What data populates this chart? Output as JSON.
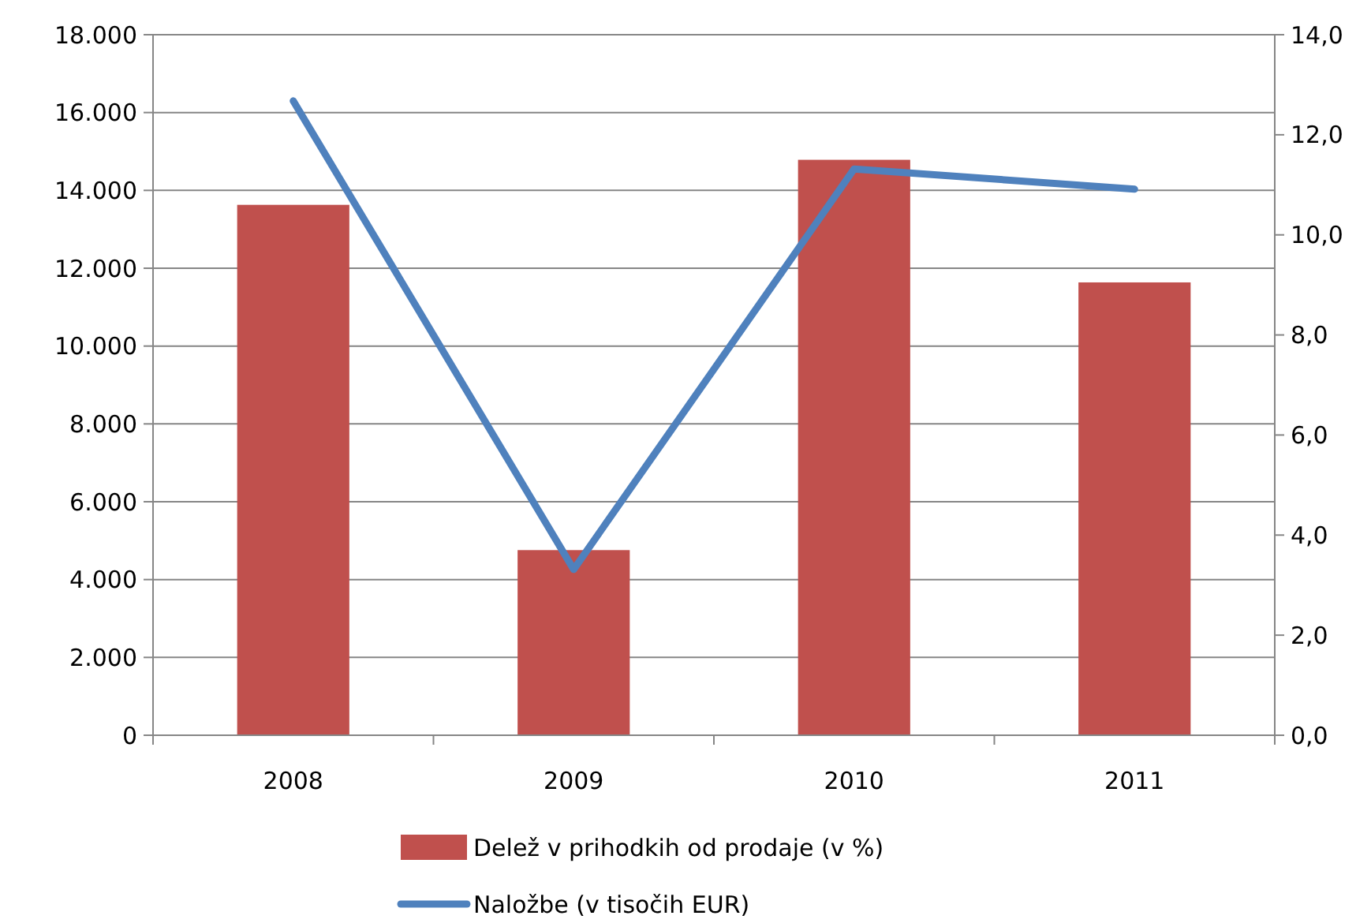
{
  "chart_data": {
    "type": "bar",
    "categories": [
      "2008",
      "2009",
      "2010",
      "2011"
    ],
    "series": [
      {
        "name": "Delež v prihodkih od prodaje (v %)",
        "axis": "y2",
        "color": "#c0504d",
        "values": [
          10.6,
          3.7,
          11.5,
          9.05
        ]
      },
      {
        "name": "Naložbe (v tisočih EUR)",
        "type": "line",
        "axis": "y",
        "color": "#4f81bd",
        "values": [
          16300,
          4260,
          14550,
          14030
        ]
      }
    ],
    "ylim": [
      0,
      18000
    ],
    "yticks": [
      0,
      {
        "value": 2000,
        "label": "2.000"
      },
      {
        "value": 4000,
        "label": "4.000"
      },
      {
        "value": 6000,
        "label": "6.000"
      },
      {
        "value": 8000,
        "label": "8.000"
      },
      {
        "value": 10000,
        "label": "10.000"
      },
      {
        "value": 12000,
        "label": "12.000"
      },
      {
        "value": 14000,
        "label": "14.000"
      },
      {
        "value": 16000,
        "label": "16.000"
      },
      {
        "value": 18000,
        "label": "18.000"
      }
    ],
    "y2lim": [
      0,
      14
    ],
    "y2ticks": [
      {
        "value": 0,
        "label": "0,0"
      },
      {
        "value": 2,
        "label": "2,0"
      },
      {
        "value": 4,
        "label": "4,0"
      },
      {
        "value": 6,
        "label": "6,0"
      },
      {
        "value": 8,
        "label": "8,0"
      },
      {
        "value": 10,
        "label": "10,0"
      },
      {
        "value": 12,
        "label": "12,0"
      },
      {
        "value": 14,
        "label": "14,0"
      }
    ],
    "grid": "y",
    "legend": "bottom",
    "marker": "none",
    "line_style": "solid"
  }
}
